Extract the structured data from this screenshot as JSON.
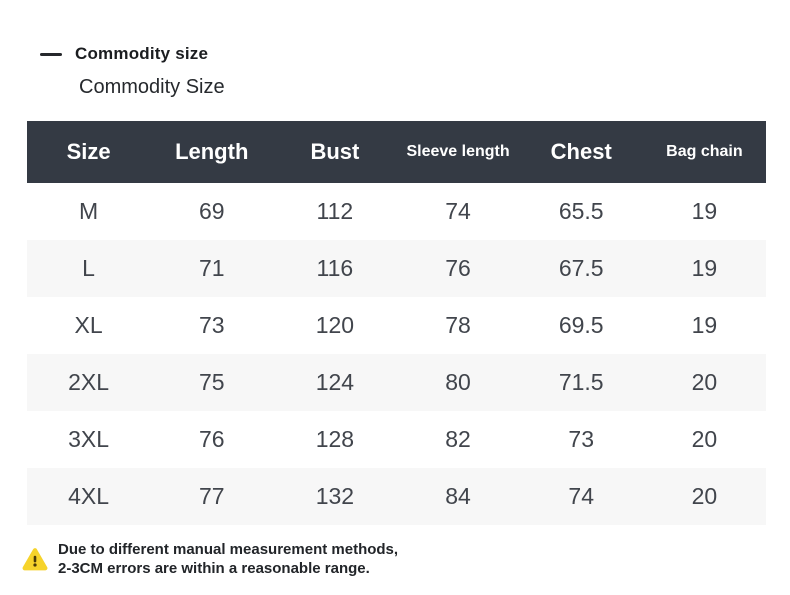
{
  "page": {
    "section_title": "Commodity size",
    "subtitle": "Commodity Size"
  },
  "table": {
    "columns": [
      {
        "label": "Size",
        "size": "large"
      },
      {
        "label": "Length",
        "size": "large"
      },
      {
        "label": "Bust",
        "size": "large"
      },
      {
        "label": "Sleeve length",
        "size": "small"
      },
      {
        "label": "Chest",
        "size": "large"
      },
      {
        "label": "Bag chain",
        "size": "small"
      }
    ],
    "rows": [
      [
        "M",
        "69",
        "112",
        "74",
        "65.5",
        "19"
      ],
      [
        "L",
        "71",
        "116",
        "76",
        "67.5",
        "19"
      ],
      [
        "XL",
        "73",
        "120",
        "78",
        "69.5",
        "19"
      ],
      [
        "2XL",
        "75",
        "124",
        "80",
        "71.5",
        "20"
      ],
      [
        "3XL",
        "76",
        "128",
        "82",
        "73",
        "20"
      ],
      [
        "4XL",
        "77",
        "132",
        "84",
        "74",
        "20"
      ]
    ]
  },
  "note": {
    "icon": "warning-triangle-icon",
    "line1": "Due to different manual measurement methods,",
    "line2": "2-3CM errors are within a reasonable range."
  },
  "colors": {
    "header_bg": "#343a44",
    "header_text": "#ffffff",
    "row_alt_bg": "#f7f7f7",
    "body_text": "#41454c",
    "warning_yellow": "#f6d32b"
  }
}
